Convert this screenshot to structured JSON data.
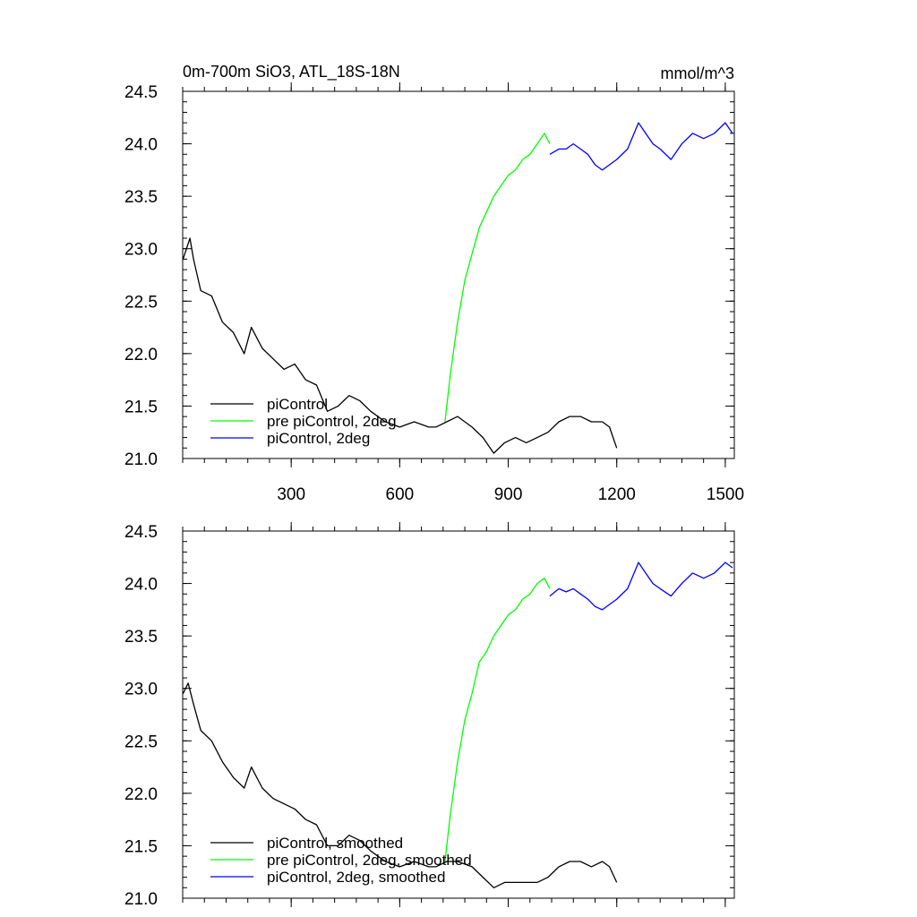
{
  "chart_data": [
    {
      "type": "line",
      "title": "0m-700m SiO3, ATL_18S-18N",
      "units": "mmol/m^3",
      "xlabel": "",
      "ylabel": "",
      "xlim": [
        0,
        1525
      ],
      "ylim": [
        21.0,
        24.5
      ],
      "xticks": [
        300,
        600,
        900,
        1200,
        1500
      ],
      "xtick_labels": [
        "300",
        "600",
        "900",
        "1200",
        "1500"
      ],
      "yticks": [
        21.0,
        21.5,
        22.0,
        22.5,
        23.0,
        23.5,
        24.0,
        24.5
      ],
      "ytick_labels": [
        "21.0",
        "21.5",
        "22.0",
        "22.5",
        "23.0",
        "23.5",
        "24.0",
        "24.5"
      ],
      "grid": false,
      "legend_position": "bottom-left",
      "series": [
        {
          "name": "piControl",
          "color": "#000000",
          "x": [
            1,
            20,
            30,
            50,
            80,
            110,
            140,
            170,
            190,
            220,
            250,
            280,
            310,
            340,
            370,
            400,
            430,
            460,
            490,
            520,
            560,
            600,
            640,
            680,
            700,
            730,
            760,
            800,
            830,
            860,
            890,
            920,
            950,
            980,
            1010,
            1040,
            1070,
            1100,
            1130,
            1160,
            1180,
            1200
          ],
          "y": [
            22.9,
            23.1,
            22.9,
            22.6,
            22.55,
            22.3,
            22.2,
            22.0,
            22.25,
            22.05,
            21.95,
            21.85,
            21.9,
            21.75,
            21.7,
            21.45,
            21.5,
            21.6,
            21.55,
            21.45,
            21.35,
            21.3,
            21.35,
            21.3,
            21.3,
            21.35,
            21.4,
            21.3,
            21.2,
            21.05,
            21.15,
            21.2,
            21.15,
            21.2,
            21.25,
            21.35,
            21.4,
            21.4,
            21.35,
            21.35,
            21.3,
            21.1
          ]
        },
        {
          "name": "pre piControl, 2deg",
          "color": "#00ff00",
          "x": [
            725,
            740,
            760,
            780,
            800,
            820,
            840,
            860,
            880,
            900,
            920,
            940,
            960,
            980,
            1000,
            1015
          ],
          "y": [
            21.35,
            21.8,
            22.3,
            22.7,
            22.95,
            23.2,
            23.35,
            23.5,
            23.6,
            23.7,
            23.75,
            23.85,
            23.9,
            24.0,
            24.1,
            24.0
          ]
        },
        {
          "name": "piControl, 2deg",
          "color": "#0000ff",
          "x": [
            1015,
            1040,
            1060,
            1080,
            1100,
            1120,
            1140,
            1160,
            1180,
            1200,
            1230,
            1260,
            1280,
            1300,
            1320,
            1350,
            1380,
            1410,
            1440,
            1470,
            1500,
            1520
          ],
          "y": [
            23.9,
            23.95,
            23.95,
            24.0,
            23.95,
            23.9,
            23.8,
            23.75,
            23.8,
            23.85,
            23.95,
            24.2,
            24.1,
            24.0,
            23.95,
            23.85,
            24.0,
            24.1,
            24.05,
            24.1,
            24.2,
            24.1
          ]
        }
      ]
    },
    {
      "type": "line",
      "title": "",
      "xlabel": "",
      "ylabel": "",
      "xlim": [
        0,
        1525
      ],
      "ylim": [
        21.0,
        24.5
      ],
      "xticks": [
        300,
        600,
        900,
        1200,
        1500
      ],
      "xtick_labels": [],
      "yticks": [
        21.0,
        21.5,
        22.0,
        22.5,
        23.0,
        23.5,
        24.0,
        24.5
      ],
      "ytick_labels": [
        "21.0",
        "21.5",
        "22.0",
        "22.5",
        "23.0",
        "23.5",
        "24.0",
        "24.5"
      ],
      "grid": false,
      "legend_position": "bottom-left",
      "series": [
        {
          "name": "piControl, smoothed",
          "color": "#000000",
          "x": [
            1,
            15,
            30,
            50,
            80,
            110,
            140,
            170,
            190,
            220,
            250,
            280,
            310,
            340,
            370,
            400,
            430,
            460,
            490,
            520,
            560,
            600,
            640,
            680,
            700,
            730,
            760,
            800,
            830,
            860,
            890,
            920,
            950,
            980,
            1010,
            1040,
            1070,
            1100,
            1130,
            1160,
            1180,
            1200
          ],
          "y": [
            22.95,
            23.05,
            22.85,
            22.6,
            22.5,
            22.3,
            22.15,
            22.05,
            22.25,
            22.05,
            21.95,
            21.9,
            21.85,
            21.75,
            21.7,
            21.5,
            21.5,
            21.6,
            21.55,
            21.45,
            21.35,
            21.3,
            21.35,
            21.3,
            21.3,
            21.35,
            21.35,
            21.3,
            21.2,
            21.1,
            21.15,
            21.15,
            21.15,
            21.15,
            21.2,
            21.3,
            21.35,
            21.35,
            21.3,
            21.35,
            21.3,
            21.15
          ]
        },
        {
          "name": "pre piControl, 2deg, smoothed",
          "color": "#00ff00",
          "x": [
            725,
            740,
            760,
            780,
            800,
            820,
            840,
            860,
            880,
            900,
            920,
            940,
            960,
            980,
            1000,
            1015
          ],
          "y": [
            21.35,
            21.8,
            22.3,
            22.7,
            22.95,
            23.25,
            23.35,
            23.5,
            23.6,
            23.7,
            23.75,
            23.85,
            23.9,
            24.0,
            24.05,
            23.95
          ]
        },
        {
          "name": "piControl, 2deg, smoothed",
          "color": "#0000ff",
          "x": [
            1015,
            1040,
            1060,
            1080,
            1100,
            1120,
            1140,
            1160,
            1180,
            1200,
            1230,
            1260,
            1280,
            1300,
            1320,
            1350,
            1380,
            1410,
            1440,
            1470,
            1500,
            1520
          ],
          "y": [
            23.88,
            23.95,
            23.92,
            23.95,
            23.9,
            23.85,
            23.78,
            23.75,
            23.8,
            23.85,
            23.95,
            24.2,
            24.1,
            24.0,
            23.95,
            23.88,
            24.0,
            24.1,
            24.05,
            24.1,
            24.2,
            24.15
          ]
        }
      ]
    }
  ]
}
